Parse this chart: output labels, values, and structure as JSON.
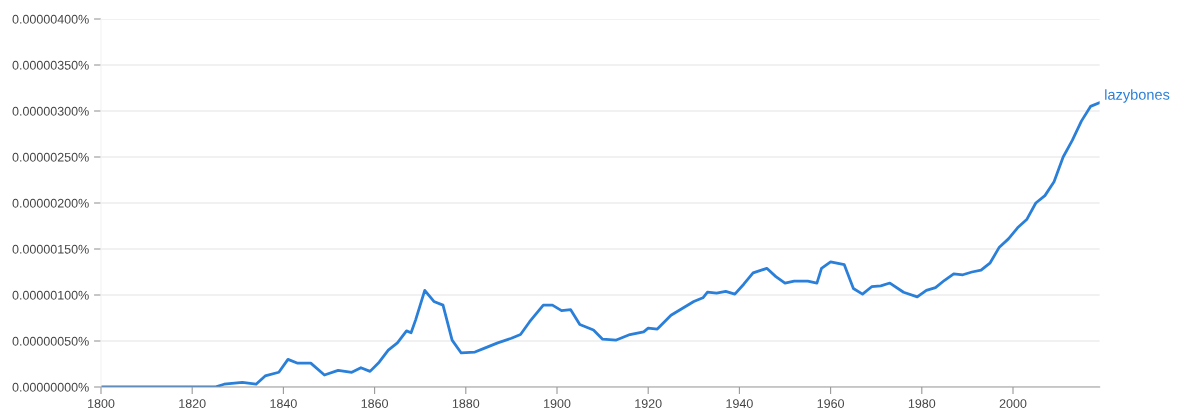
{
  "chart_data": {
    "type": "line",
    "x": [
      1800,
      1810,
      1820,
      1825,
      1827,
      1831,
      1834,
      1836,
      1839,
      1841,
      1843,
      1846,
      1849,
      1852,
      1855,
      1857,
      1859,
      1861,
      1863,
      1865,
      1867,
      1868,
      1869,
      1871,
      1873,
      1875,
      1877,
      1879,
      1882,
      1884,
      1887,
      1890,
      1892,
      1894,
      1897,
      1899,
      1901,
      1903,
      1905,
      1908,
      1910,
      1913,
      1916,
      1919,
      1920,
      1922,
      1925,
      1930,
      1932,
      1933,
      1935,
      1937,
      1939,
      1941,
      1943,
      1946,
      1948,
      1950,
      1952,
      1955,
      1957,
      1958,
      1960,
      1963,
      1965,
      1967,
      1969,
      1971,
      1973,
      1976,
      1979,
      1981,
      1983,
      1985,
      1987,
      1989,
      1991,
      1993,
      1995,
      1997,
      1999,
      2001,
      2003,
      2005,
      2007,
      2009,
      2011,
      2013,
      2015,
      2017,
      2019
    ],
    "series": [
      {
        "name": "lazybones",
        "color": "#2a7fd9",
        "values": [
          0,
          0,
          0,
          0,
          3e-08,
          5e-08,
          3e-08,
          1.2e-07,
          1.6e-07,
          3e-07,
          2.6e-07,
          2.6e-07,
          1.3e-07,
          1.8e-07,
          1.6e-07,
          2.1e-07,
          1.7e-07,
          2.7e-07,
          4e-07,
          4.8e-07,
          6.1e-07,
          5.9e-07,
          7.3e-07,
          1.05e-06,
          9.3e-07,
          8.9e-07,
          5.1e-07,
          3.7e-07,
          3.8e-07,
          4.2e-07,
          4.8e-07,
          5.3e-07,
          5.7e-07,
          7.1e-07,
          8.9e-07,
          8.9e-07,
          8.3e-07,
          8.4e-07,
          6.8e-07,
          6.2e-07,
          5.2e-07,
          5.1e-07,
          5.7e-07,
          6e-07,
          6.4e-07,
          6.3e-07,
          7.8e-07,
          9.3e-07,
          9.7e-07,
          1.03e-06,
          1.02e-06,
          1.04e-06,
          1.01e-06,
          1.12e-06,
          1.24e-06,
          1.29e-06,
          1.2e-06,
          1.13e-06,
          1.15e-06,
          1.15e-06,
          1.13e-06,
          1.29e-06,
          1.36e-06,
          1.33e-06,
          1.07e-06,
          1.01e-06,
          1.09e-06,
          1.1e-06,
          1.13e-06,
          1.03e-06,
          9.8e-07,
          1.05e-06,
          1.08e-06,
          1.16e-06,
          1.23e-06,
          1.22e-06,
          1.25e-06,
          1.27e-06,
          1.35e-06,
          1.52e-06,
          1.61e-06,
          1.73e-06,
          1.82e-06,
          2e-06,
          2.08e-06,
          2.23e-06,
          2.5e-06,
          2.68e-06,
          2.89e-06,
          3.05e-06,
          3.09e-06
        ]
      }
    ],
    "xlim": [
      1800,
      2019
    ],
    "xticks": [
      1800,
      1820,
      1840,
      1860,
      1880,
      1900,
      1920,
      1940,
      1960,
      1980,
      2000
    ],
    "ylim": [
      0,
      4e-06
    ],
    "yticks": [
      {
        "value": 0,
        "label": "0.00000000%"
      },
      {
        "value": 5e-07,
        "label": "0.00000050%"
      },
      {
        "value": 1e-06,
        "label": "0.00000100%"
      },
      {
        "value": 1.5e-06,
        "label": "0.00000150%"
      },
      {
        "value": 2e-06,
        "label": "0.00000200%"
      },
      {
        "value": 2.5e-06,
        "label": "0.00000250%"
      },
      {
        "value": 3e-06,
        "label": "0.00000300%"
      },
      {
        "value": 3.5e-06,
        "label": "0.00000350%"
      },
      {
        "value": 4e-06,
        "label": "0.00000400%"
      }
    ],
    "grid": "y",
    "legend": false,
    "marker": "none",
    "line_style": "solid"
  }
}
